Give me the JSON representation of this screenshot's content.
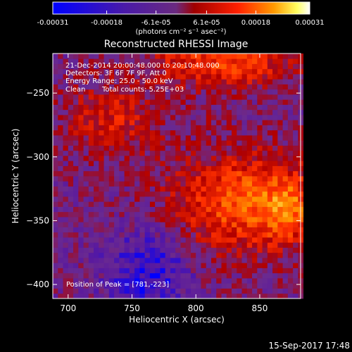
{
  "colorbar": {
    "tick_labels": [
      "-0.00031",
      "-0.00018",
      "-6.1e-05",
      "6.1e-05",
      "0.00018",
      "0.00031"
    ],
    "tick_values": [
      -0.00031,
      -0.00018,
      -6.1e-05,
      6.1e-05,
      0.00018,
      0.00031
    ],
    "range": [
      -0.00031,
      0.00031
    ],
    "unit_label": "(photons cm⁻² s⁻¹ asec⁻²)"
  },
  "chart_data": {
    "type": "heatmap",
    "title": "Reconstructed RHESSI Image",
    "xlabel": "Heliocentric X (arcsec)",
    "ylabel": "Heliocentric Y (arcsec)",
    "xlim": [
      688,
      882
    ],
    "ylim": [
      -411,
      -219
    ],
    "xticks": [
      700,
      750,
      800,
      850
    ],
    "yticks": [
      -250,
      -300,
      -350,
      -400
    ],
    "xtick_labels": [
      "700",
      "750",
      "800",
      "850"
    ],
    "ytick_labels": [
      "−250",
      "−300",
      "−350",
      "−400"
    ],
    "colormap": [
      "#0000ff",
      "#5a1a9e",
      "#6a2a90",
      "#b00000",
      "#ff3000",
      "#ff9a00",
      "#ffff80",
      "#ffffff"
    ],
    "regions": [
      {
        "x": 820,
        "y": -225,
        "rx": 60,
        "ry": 22,
        "level": 0.62
      },
      {
        "x": 735,
        "y": -270,
        "rx": 40,
        "ry": 30,
        "level": 0.52
      },
      {
        "x": 840,
        "y": -335,
        "rx": 60,
        "ry": 40,
        "level": 0.68
      },
      {
        "x": 868,
        "y": -340,
        "rx": 18,
        "ry": 20,
        "level": 0.78
      },
      {
        "x": 810,
        "y": -270,
        "rx": 25,
        "ry": 22,
        "level": 0.36
      },
      {
        "x": 762,
        "y": -392,
        "rx": 32,
        "ry": 34,
        "level": 0.08
      }
    ],
    "annotations": {
      "date": "21-Dec-2014 20:00:48.000 to 20:10:48.000",
      "detectors": "Detectors: 3F 6F 7F 9F, Att 0",
      "energy": "Energy Range: 25.0 - 50.0 keV",
      "algorithm": "Clean",
      "counts": "Total counts: 5.25E+03",
      "peak": "Position of Peak = [781,-223]"
    }
  },
  "footer_timestamp": "15-Sep-2017 17:48"
}
